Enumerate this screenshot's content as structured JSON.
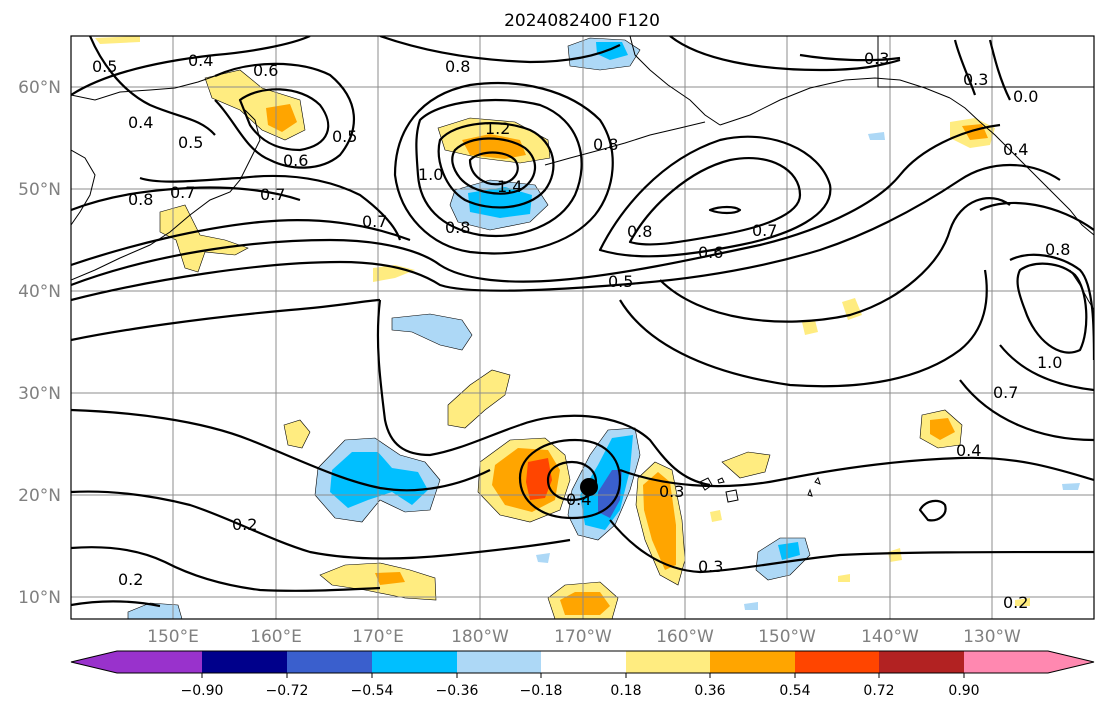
{
  "title": "2024082400 F120",
  "map": {
    "lat_labels": [
      "60°N",
      "50°N",
      "40°N",
      "30°N",
      "20°N",
      "10°N"
    ],
    "lon_labels": [
      "150°E",
      "160°E",
      "170°E",
      "180°W",
      "170°W",
      "160°W",
      "150°W",
      "140°W",
      "130°W"
    ],
    "extent": {
      "lon_min": 140,
      "lon_max": 240,
      "lat_min": 8,
      "lat_max": 65
    },
    "storm_center": {
      "lon": 190.2,
      "lat": 21.0
    }
  },
  "contour_labels": [
    "0.4",
    "0.6",
    "0.8",
    "0.5",
    "0.4",
    "0.5",
    "0.5",
    "0.6",
    "0.7",
    "0.7",
    "0.8",
    "1.2",
    "1.0",
    "1.4",
    "0.8",
    "0.7",
    "0.8",
    "0.8",
    "0.6",
    "0.7",
    "0.5",
    "0.3",
    "0.3",
    "0.0",
    "0.4",
    "0.8",
    "1.0",
    "0.7",
    "0.4",
    "0.2",
    "0.2",
    "0.3",
    "0.3",
    "0.4",
    "0.2"
  ],
  "colorbar": {
    "ticks": [
      "−0.90",
      "−0.72",
      "−0.54",
      "−0.36",
      "−0.18",
      "0.18",
      "0.36",
      "0.54",
      "0.72",
      "0.90"
    ],
    "colors": [
      "#9932cc",
      "#00008b",
      "#3a5fcd",
      "#00bfff",
      "#add8f6",
      "#ffffff",
      "#ffec80",
      "#ffa500",
      "#ff4500",
      "#b22222",
      "#ff88b0"
    ]
  }
}
